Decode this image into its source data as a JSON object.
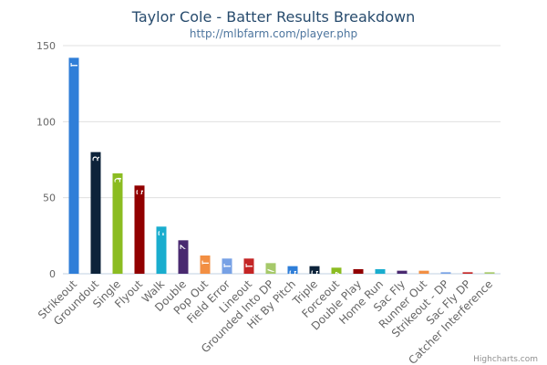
{
  "chart_data": {
    "type": "bar",
    "title": "Taylor Cole - Batter Results Breakdown",
    "subtitle": "http://mlbfarm.com/player.php",
    "categories": [
      "Strikeout",
      "Groundout",
      "Single",
      "Flyout",
      "Walk",
      "Double",
      "Pop Out",
      "Field Error",
      "Lineout",
      "Grounded Into DP",
      "Hit By Pitch",
      "Triple",
      "Forceout",
      "Double Play",
      "Home Run",
      "Sac Fly",
      "Runner Out",
      "Strikeout - DP",
      "Sac Fly DP",
      "Catcher Interference"
    ],
    "values": [
      142,
      80,
      66,
      58,
      31,
      22,
      12,
      10,
      10,
      7,
      5,
      5,
      4,
      3,
      3,
      2,
      2,
      1,
      1,
      1
    ],
    "colors": [
      "#2f7ed8",
      "#0d233a",
      "#8bbc21",
      "#910000",
      "#1aadce",
      "#492970",
      "#f28f43",
      "#77a1e5",
      "#c42525",
      "#a6c96a",
      "#2f7ed8",
      "#0d233a",
      "#8bbc21",
      "#910000",
      "#1aadce",
      "#492970",
      "#f28f43",
      "#77a1e5",
      "#c42525",
      "#a6c96a"
    ],
    "ylim": [
      0,
      150
    ],
    "yticks": [
      0,
      50,
      100,
      150
    ],
    "grid": true,
    "credits": "Highcharts.com"
  }
}
